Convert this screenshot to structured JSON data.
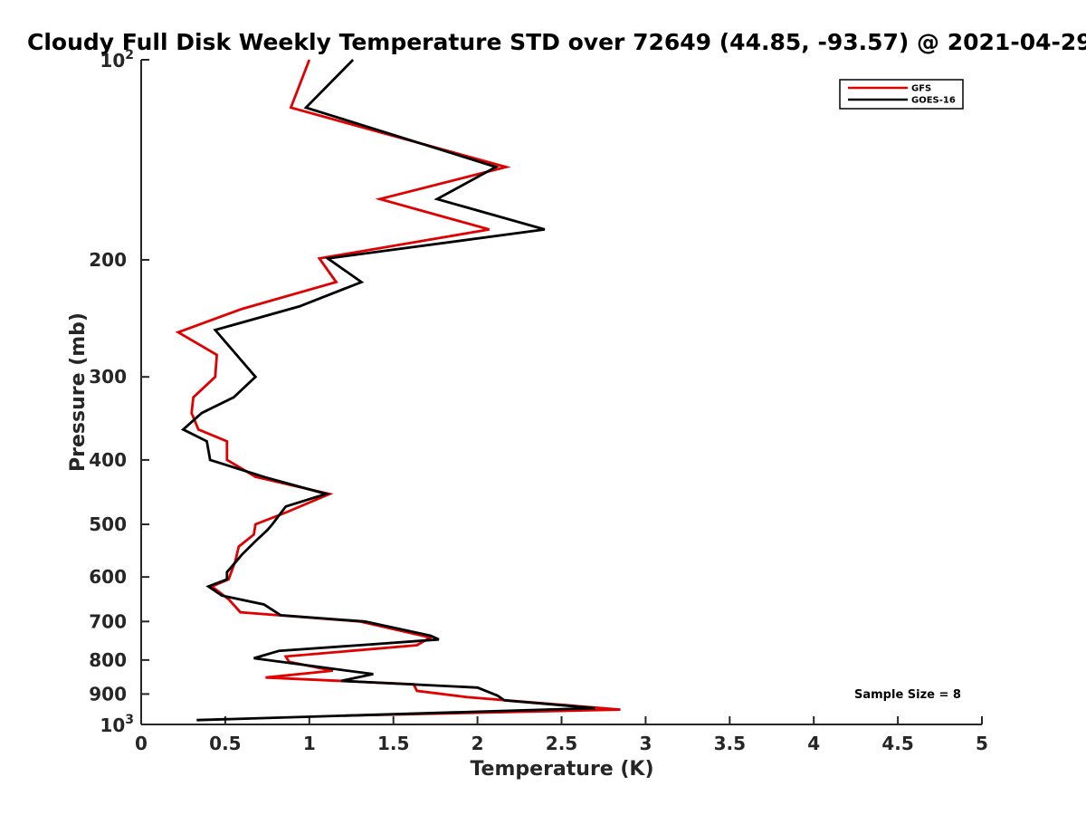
{
  "chart_data": {
    "type": "line",
    "title": "Cloudy Full Disk Weekly Temperature STD over 72649 (44.85, -93.57) @ 2021-04-29",
    "xlabel": "Temperature (K)",
    "ylabel": "Pressure (mb)",
    "xlim": [
      0,
      5
    ],
    "ylim": [
      100,
      1000
    ],
    "y_scale": "log",
    "y_reversed": true,
    "x_ticks": [
      0,
      0.5,
      1,
      1.5,
      2,
      2.5,
      3,
      3.5,
      4,
      4.5,
      5
    ],
    "x_tick_labels": [
      "0",
      "0.5",
      "1",
      "1.5",
      "2",
      "2.5",
      "3",
      "3.5",
      "4",
      "4.5",
      "5"
    ],
    "y_ticks": [
      {
        "value": 100,
        "base": "10",
        "exp": "2"
      },
      {
        "value": 200,
        "label": "200"
      },
      {
        "value": 300,
        "label": "300"
      },
      {
        "value": 400,
        "label": "400"
      },
      {
        "value": 500,
        "label": "500"
      },
      {
        "value": 600,
        "label": "600"
      },
      {
        "value": 700,
        "label": "700"
      },
      {
        "value": 800,
        "label": "800"
      },
      {
        "value": 900,
        "label": "900"
      },
      {
        "value": 1000,
        "base": "10",
        "exp": "3"
      }
    ],
    "grid": false,
    "legend_position": "top-right",
    "series": [
      {
        "name": "GFS",
        "color": "#e00000",
        "points": [
          [
            1.0,
            100
          ],
          [
            0.89,
            118
          ],
          [
            2.17,
            145
          ],
          [
            1.42,
            162
          ],
          [
            2.07,
            180
          ],
          [
            1.06,
            199
          ],
          [
            1.16,
            216
          ],
          [
            0.6,
            237
          ],
          [
            0.22,
            257
          ],
          [
            0.45,
            278
          ],
          [
            0.44,
            300
          ],
          [
            0.31,
            322
          ],
          [
            0.3,
            340
          ],
          [
            0.34,
            360
          ],
          [
            0.51,
            375
          ],
          [
            0.51,
            400
          ],
          [
            0.68,
            424
          ],
          [
            1.12,
            450
          ],
          [
            0.86,
            480
          ],
          [
            0.68,
            500
          ],
          [
            0.67,
            518
          ],
          [
            0.58,
            540
          ],
          [
            0.56,
            568
          ],
          [
            0.52,
            605
          ],
          [
            0.42,
            620
          ],
          [
            0.52,
            648
          ],
          [
            0.59,
            678
          ],
          [
            1.3,
            700
          ],
          [
            1.72,
            740
          ],
          [
            1.64,
            760
          ],
          [
            0.86,
            790
          ],
          [
            0.88,
            805
          ],
          [
            1.14,
            830
          ],
          [
            0.74,
            850
          ],
          [
            1.62,
            870
          ],
          [
            1.64,
            890
          ],
          [
            1.94,
            910
          ],
          [
            2.85,
            950
          ],
          [
            1.2,
            970
          ]
        ]
      },
      {
        "name": "GOES-16",
        "color": "#000000",
        "points": [
          [
            1.26,
            100
          ],
          [
            0.98,
            118
          ],
          [
            2.11,
            145
          ],
          [
            1.76,
            162
          ],
          [
            2.4,
            180
          ],
          [
            1.11,
            199
          ],
          [
            1.31,
            216
          ],
          [
            0.94,
            235
          ],
          [
            0.44,
            255
          ],
          [
            0.68,
            300
          ],
          [
            0.55,
            322
          ],
          [
            0.36,
            340
          ],
          [
            0.25,
            360
          ],
          [
            0.39,
            375
          ],
          [
            0.41,
            400
          ],
          [
            0.74,
            425
          ],
          [
            1.1,
            450
          ],
          [
            0.86,
            470
          ],
          [
            0.78,
            500
          ],
          [
            0.75,
            510
          ],
          [
            0.68,
            530
          ],
          [
            0.6,
            555
          ],
          [
            0.51,
            590
          ],
          [
            0.51,
            605
          ],
          [
            0.4,
            620
          ],
          [
            0.48,
            640
          ],
          [
            0.73,
            660
          ],
          [
            0.83,
            685
          ],
          [
            1.33,
            700
          ],
          [
            1.72,
            735
          ],
          [
            1.77,
            745
          ],
          [
            1.3,
            760
          ],
          [
            0.82,
            775
          ],
          [
            0.67,
            795
          ],
          [
            1.38,
            840
          ],
          [
            1.19,
            860
          ],
          [
            2.0,
            880
          ],
          [
            2.12,
            905
          ],
          [
            2.16,
            920
          ],
          [
            2.7,
            945
          ],
          [
            0.33,
            985
          ]
        ]
      }
    ],
    "annotation": "Sample Size = 8"
  }
}
